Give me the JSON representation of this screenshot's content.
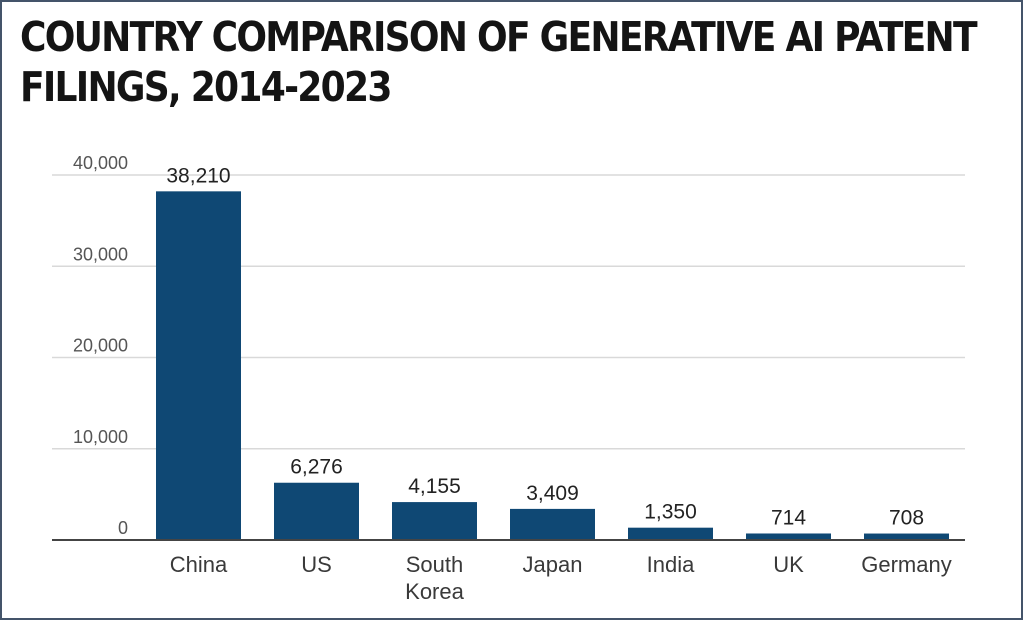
{
  "chart_data": {
    "type": "bar",
    "title": "COUNTRY COMPARISON OF GENERATIVE AI PATENT FILINGS, 2014-2023",
    "title_lines": [
      "COUNTRY COMPARISON OF GENERATIVE AI PATENT",
      "FILINGS, 2014-2023"
    ],
    "categories": [
      "China",
      "US",
      "South Korea",
      "Japan",
      "India",
      "UK",
      "Germany"
    ],
    "category_lines": [
      [
        "China"
      ],
      [
        "US"
      ],
      [
        "South",
        "Korea"
      ],
      [
        "Japan"
      ],
      [
        "India"
      ],
      [
        "UK"
      ],
      [
        "Germany"
      ]
    ],
    "values": [
      38210,
      6276,
      4155,
      3409,
      1350,
      714,
      708
    ],
    "value_labels": [
      "38,210",
      "6,276",
      "4,155",
      "3,409",
      "1,350",
      "714",
      "708"
    ],
    "yticks": [
      0,
      10000,
      20000,
      30000,
      40000
    ],
    "ytick_labels": [
      "0",
      "10,000",
      "20,000",
      "30,000",
      "40,000"
    ],
    "ylim": [
      0,
      40000
    ],
    "grid": true,
    "xlabel": "",
    "ylabel": "",
    "colors": {
      "bar": "#0f4874",
      "grid": "#d9d9d9",
      "axis": "#444444",
      "frame": "#44546a"
    }
  }
}
